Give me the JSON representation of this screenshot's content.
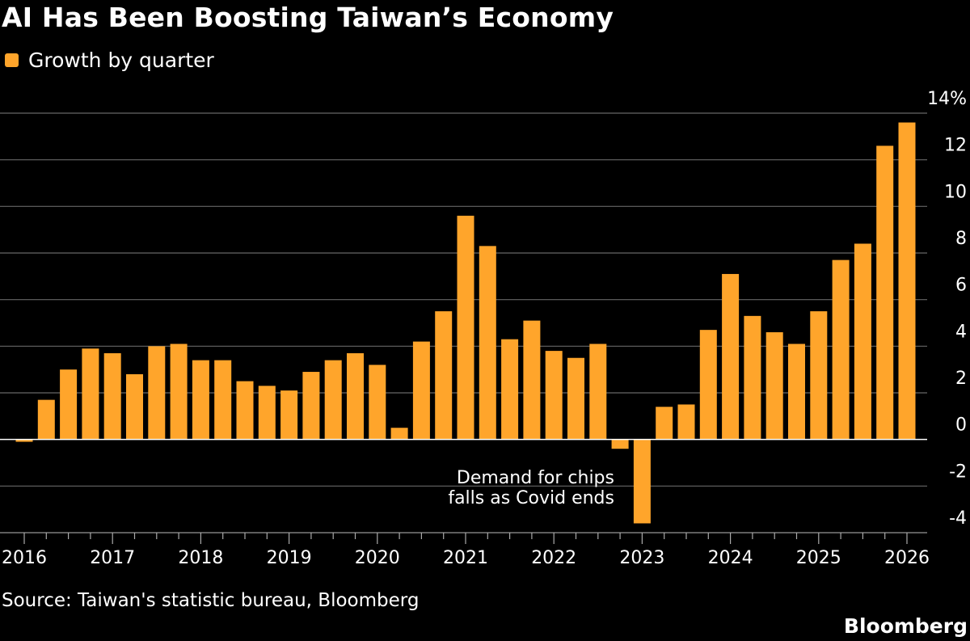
{
  "title": "AI Has Been Boosting Taiwan’s Economy",
  "legend": {
    "label": "Growth by quarter",
    "color": "#ffa52b"
  },
  "source": "Source: Taiwan's statistic bureau, Bloomberg",
  "brand": "Bloomberg",
  "chart_data": {
    "type": "bar",
    "series": [
      {
        "name": "Growth by quarter",
        "color": "#ffa52b",
        "x": [
          "2016 Q1",
          "2016 Q2",
          "2016 Q3",
          "2016 Q4",
          "2017 Q1",
          "2017 Q2",
          "2017 Q3",
          "2017 Q4",
          "2018 Q1",
          "2018 Q2",
          "2018 Q3",
          "2018 Q4",
          "2019 Q1",
          "2019 Q2",
          "2019 Q3",
          "2019 Q4",
          "2020 Q1",
          "2020 Q2",
          "2020 Q3",
          "2020 Q4",
          "2021 Q1",
          "2021 Q2",
          "2021 Q3",
          "2021 Q4",
          "2022 Q1",
          "2022 Q2",
          "2022 Q3",
          "2022 Q4",
          "2023 Q1",
          "2023 Q2",
          "2023 Q3",
          "2023 Q4",
          "2024 Q1",
          "2024 Q2",
          "2024 Q3",
          "2024 Q4",
          "2025 Q1",
          "2025 Q2",
          "2025 Q3",
          "2025 Q4"
        ],
        "values": [
          -0.1,
          1.7,
          3.0,
          3.9,
          3.7,
          2.8,
          4.0,
          4.1,
          3.4,
          3.4,
          2.5,
          2.3,
          2.1,
          2.9,
          3.4,
          3.7,
          3.2,
          0.5,
          4.2,
          5.5,
          9.6,
          8.3,
          4.3,
          5.1,
          3.8,
          3.5,
          4.1,
          -0.4,
          -3.6,
          1.4,
          1.5,
          4.7,
          7.1,
          5.3,
          4.6,
          4.1,
          5.5,
          7.7,
          8.4,
          12.6
        ]
      },
      {
        "name": "",
        "x": [
          "2026 Q1"
        ],
        "values": [
          13.6
        ]
      }
    ],
    "x_tick_labels": [
      "2016",
      "2017",
      "2018",
      "2019",
      "2020",
      "2021",
      "2022",
      "2023",
      "2024",
      "2025",
      "2026"
    ],
    "y_tick_labels": [
      "14%",
      "12",
      "10",
      "8",
      "6",
      "4",
      "2",
      "0",
      "-2",
      "-4"
    ],
    "y_ticks": [
      14,
      12,
      10,
      8,
      6,
      4,
      2,
      0,
      -2,
      -4
    ],
    "ylim": [
      -4,
      14
    ],
    "y_axis_position": "right",
    "grid": true,
    "legend_position": "top-left",
    "annotation": {
      "lines": [
        "Demand for chips",
        "falls as Covid ends"
      ],
      "target": "2023 Q1"
    }
  }
}
